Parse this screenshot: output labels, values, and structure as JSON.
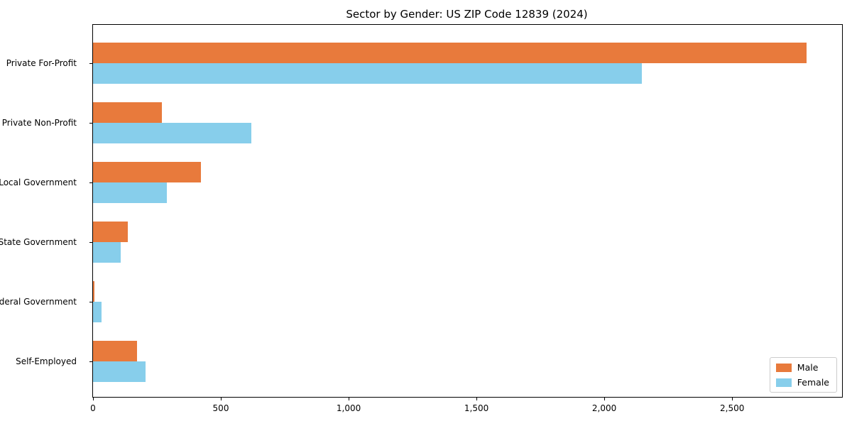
{
  "chart_data": {
    "type": "bar",
    "orientation": "horizontal",
    "title": "Sector by Gender: US ZIP Code 12839 (2024)",
    "categories": [
      "Private For-Profit",
      "Private Non-Profit",
      "Local Government",
      "State Government",
      "Federal Government",
      "Self-Employed"
    ],
    "series": [
      {
        "name": "Male",
        "color": "#e87a3c",
        "values": [
          2790,
          268,
          421,
          136,
          5,
          172
        ]
      },
      {
        "name": "Female",
        "color": "#87ceeb",
        "values": [
          2147,
          619,
          289,
          109,
          33,
          206
        ]
      }
    ],
    "xlabel": "",
    "ylabel": "",
    "xlim": [
      0,
      2930
    ],
    "xticks": [
      0,
      500,
      1000,
      1500,
      2000,
      2500
    ],
    "xtick_labels": [
      "0",
      "500",
      "1,000",
      "1,500",
      "2,000",
      "2,500"
    ],
    "grid": false,
    "legend_position": "lower right",
    "background_color": "#ffffff",
    "axis_color": "#000000"
  }
}
